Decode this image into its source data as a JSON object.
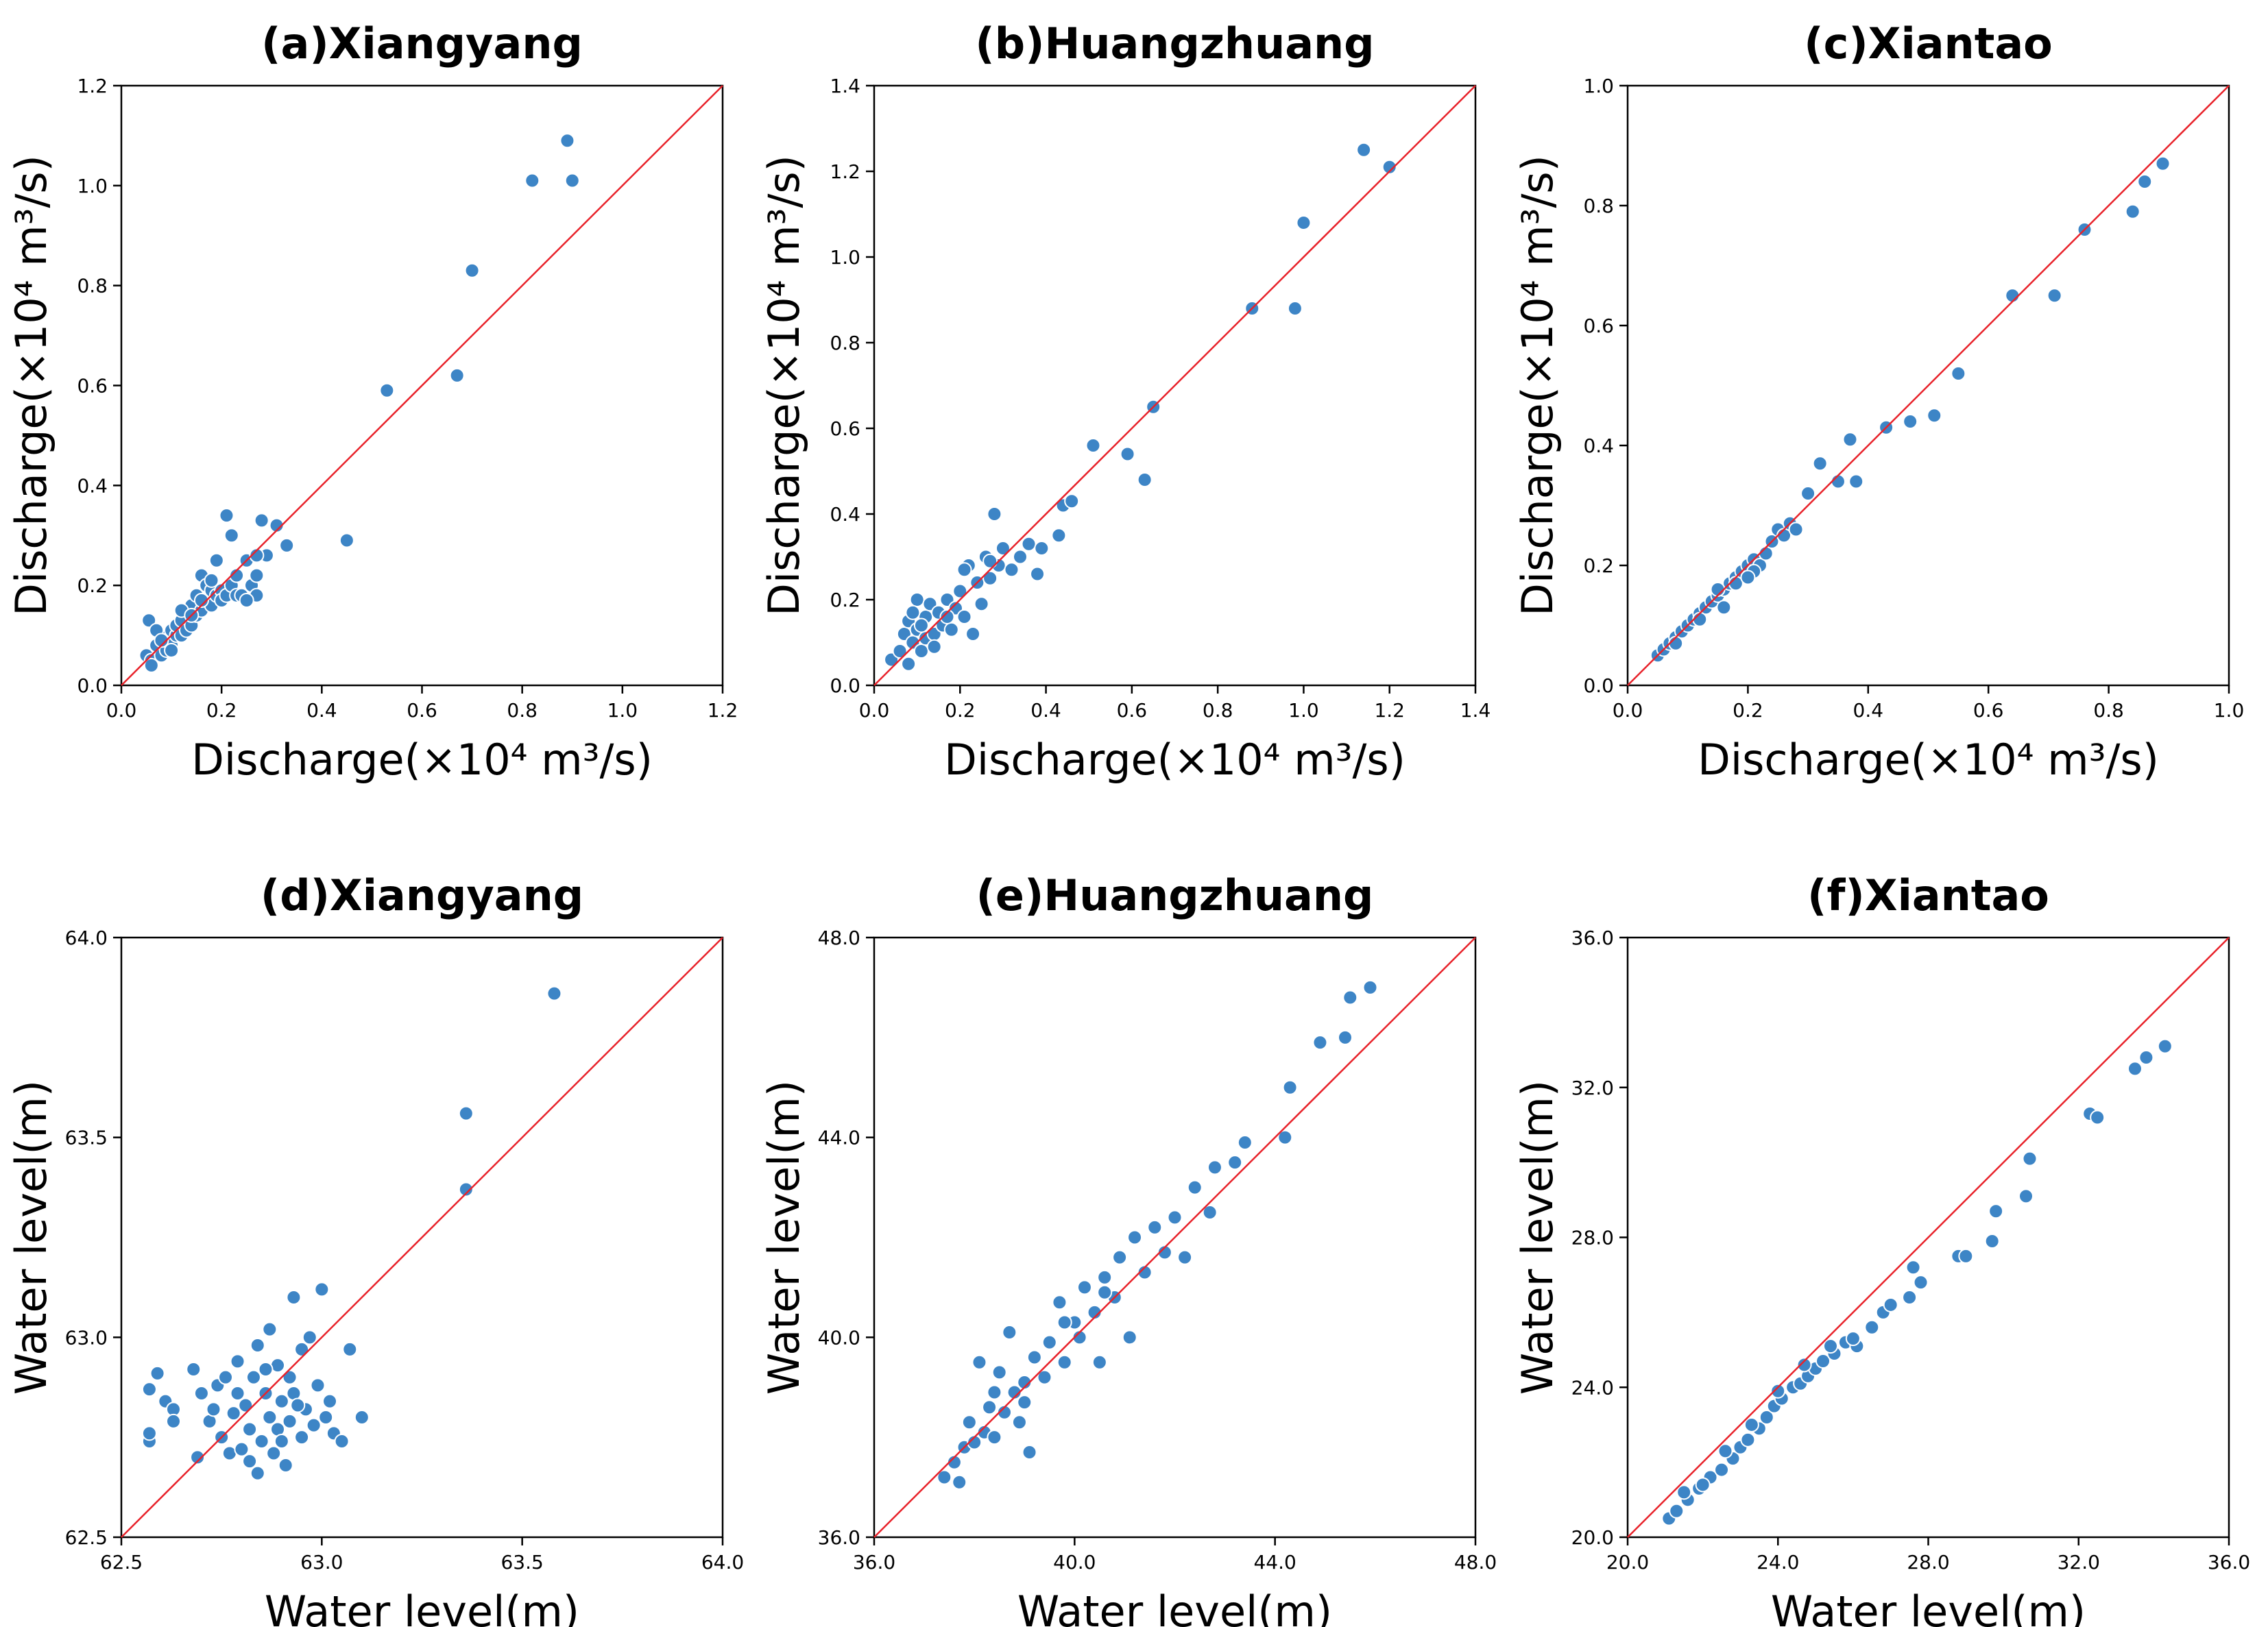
{
  "colors": {
    "point": "#3d85c6",
    "point_edge": "#ffffff",
    "diagonal": "#e8222a",
    "axes": "#000000"
  },
  "chart_data": [
    {
      "id": "a",
      "type": "scatter",
      "title": "(a)Xiangyang",
      "xlabel": "Discharge(×10⁴ m³/s)",
      "ylabel": "Discharge(×10⁴ m³/s)",
      "xlim": [
        0,
        1.2
      ],
      "ylim": [
        0,
        1.2
      ],
      "ticks": [
        0.0,
        0.2,
        0.4,
        0.6,
        0.8,
        1.0,
        1.2
      ],
      "tick_labels": [
        "0.0",
        "0.2",
        "0.4",
        "0.6",
        "0.8",
        "1.0",
        "1.2"
      ],
      "diagonal": true,
      "points": [
        [
          0.05,
          0.06
        ],
        [
          0.06,
          0.05
        ],
        [
          0.055,
          0.13
        ],
        [
          0.06,
          0.04
        ],
        [
          0.07,
          0.08
        ],
        [
          0.08,
          0.06
        ],
        [
          0.08,
          0.1
        ],
        [
          0.09,
          0.07
        ],
        [
          0.09,
          0.09
        ],
        [
          0.1,
          0.08
        ],
        [
          0.1,
          0.11
        ],
        [
          0.11,
          0.1
        ],
        [
          0.11,
          0.12
        ],
        [
          0.12,
          0.1
        ],
        [
          0.12,
          0.13
        ],
        [
          0.13,
          0.11
        ],
        [
          0.13,
          0.15
        ],
        [
          0.14,
          0.12
        ],
        [
          0.14,
          0.16
        ],
        [
          0.15,
          0.14
        ],
        [
          0.15,
          0.18
        ],
        [
          0.16,
          0.15
        ],
        [
          0.16,
          0.22
        ],
        [
          0.17,
          0.17
        ],
        [
          0.17,
          0.2
        ],
        [
          0.18,
          0.16
        ],
        [
          0.18,
          0.19
        ],
        [
          0.19,
          0.18
        ],
        [
          0.19,
          0.25
        ],
        [
          0.2,
          0.19
        ],
        [
          0.2,
          0.17
        ],
        [
          0.21,
          0.18
        ],
        [
          0.21,
          0.34
        ],
        [
          0.22,
          0.3
        ],
        [
          0.22,
          0.2
        ],
        [
          0.23,
          0.18
        ],
        [
          0.23,
          0.22
        ],
        [
          0.24,
          0.18
        ],
        [
          0.25,
          0.25
        ],
        [
          0.26,
          0.2
        ],
        [
          0.27,
          0.18
        ],
        [
          0.27,
          0.22
        ],
        [
          0.28,
          0.33
        ],
        [
          0.29,
          0.26
        ],
        [
          0.31,
          0.32
        ],
        [
          0.33,
          0.28
        ],
        [
          0.45,
          0.29
        ],
        [
          0.53,
          0.59
        ],
        [
          0.67,
          0.62
        ],
        [
          0.7,
          0.83
        ],
        [
          0.82,
          1.01
        ],
        [
          0.89,
          1.09
        ],
        [
          0.9,
          1.01
        ],
        [
          0.07,
          0.11
        ],
        [
          0.08,
          0.09
        ],
        [
          0.1,
          0.07
        ],
        [
          0.12,
          0.15
        ],
        [
          0.14,
          0.14
        ],
        [
          0.16,
          0.17
        ],
        [
          0.18,
          0.21
        ],
        [
          0.25,
          0.17
        ],
        [
          0.27,
          0.26
        ]
      ]
    },
    {
      "id": "b",
      "type": "scatter",
      "title": "(b)Huangzhuang",
      "xlabel": "Discharge(×10⁴ m³/s)",
      "ylabel": "Discharge(×10⁴ m³/s)",
      "xlim": [
        0,
        1.4
      ],
      "ylim": [
        0,
        1.4
      ],
      "ticks": [
        0.0,
        0.2,
        0.4,
        0.6,
        0.8,
        1.0,
        1.2,
        1.4
      ],
      "tick_labels": [
        "0.0",
        "0.2",
        "0.4",
        "0.6",
        "0.8",
        "1.0",
        "1.2",
        "1.4"
      ],
      "diagonal": true,
      "points": [
        [
          0.04,
          0.06
        ],
        [
          0.06,
          0.08
        ],
        [
          0.07,
          0.12
        ],
        [
          0.08,
          0.05
        ],
        [
          0.08,
          0.15
        ],
        [
          0.09,
          0.1
        ],
        [
          0.1,
          0.13
        ],
        [
          0.1,
          0.2
        ],
        [
          0.11,
          0.08
        ],
        [
          0.12,
          0.16
        ],
        [
          0.12,
          0.11
        ],
        [
          0.13,
          0.19
        ],
        [
          0.14,
          0.12
        ],
        [
          0.15,
          0.17
        ],
        [
          0.16,
          0.14
        ],
        [
          0.17,
          0.2
        ],
        [
          0.18,
          0.13
        ],
        [
          0.19,
          0.18
        ],
        [
          0.2,
          0.22
        ],
        [
          0.21,
          0.16
        ],
        [
          0.22,
          0.28
        ],
        [
          0.23,
          0.12
        ],
        [
          0.24,
          0.24
        ],
        [
          0.25,
          0.19
        ],
        [
          0.26,
          0.3
        ],
        [
          0.27,
          0.25
        ],
        [
          0.28,
          0.4
        ],
        [
          0.29,
          0.28
        ],
        [
          0.3,
          0.32
        ],
        [
          0.32,
          0.27
        ],
        [
          0.34,
          0.3
        ],
        [
          0.36,
          0.33
        ],
        [
          0.38,
          0.26
        ],
        [
          0.39,
          0.32
        ],
        [
          0.43,
          0.35
        ],
        [
          0.44,
          0.42
        ],
        [
          0.46,
          0.43
        ],
        [
          0.51,
          0.56
        ],
        [
          0.59,
          0.54
        ],
        [
          0.63,
          0.48
        ],
        [
          0.65,
          0.65
        ],
        [
          0.88,
          0.88
        ],
        [
          0.98,
          0.88
        ],
        [
          1.0,
          1.08
        ],
        [
          1.14,
          1.25
        ],
        [
          1.2,
          1.21
        ],
        [
          0.09,
          0.17
        ],
        [
          0.11,
          0.14
        ],
        [
          0.14,
          0.09
        ],
        [
          0.17,
          0.16
        ],
        [
          0.21,
          0.27
        ],
        [
          0.27,
          0.29
        ]
      ]
    },
    {
      "id": "c",
      "type": "scatter",
      "title": "(c)Xiantao",
      "xlabel": "Discharge(×10⁴ m³/s)",
      "ylabel": "Discharge(×10⁴ m³/s)",
      "xlim": [
        0,
        1.0
      ],
      "ylim": [
        0,
        1.0
      ],
      "ticks": [
        0.0,
        0.2,
        0.4,
        0.6,
        0.8,
        1.0
      ],
      "tick_labels": [
        "0.0",
        "0.2",
        "0.4",
        "0.6",
        "0.8",
        "1.0"
      ],
      "diagonal": true,
      "points": [
        [
          0.05,
          0.05
        ],
        [
          0.06,
          0.06
        ],
        [
          0.07,
          0.07
        ],
        [
          0.08,
          0.08
        ],
        [
          0.09,
          0.09
        ],
        [
          0.1,
          0.1
        ],
        [
          0.11,
          0.11
        ],
        [
          0.12,
          0.12
        ],
        [
          0.13,
          0.13
        ],
        [
          0.14,
          0.14
        ],
        [
          0.15,
          0.15
        ],
        [
          0.16,
          0.16
        ],
        [
          0.17,
          0.17
        ],
        [
          0.18,
          0.18
        ],
        [
          0.19,
          0.19
        ],
        [
          0.2,
          0.2
        ],
        [
          0.21,
          0.21
        ],
        [
          0.22,
          0.2
        ],
        [
          0.23,
          0.22
        ],
        [
          0.24,
          0.24
        ],
        [
          0.25,
          0.26
        ],
        [
          0.26,
          0.25
        ],
        [
          0.27,
          0.27
        ],
        [
          0.28,
          0.26
        ],
        [
          0.3,
          0.32
        ],
        [
          0.32,
          0.37
        ],
        [
          0.35,
          0.34
        ],
        [
          0.37,
          0.41
        ],
        [
          0.38,
          0.34
        ],
        [
          0.43,
          0.43
        ],
        [
          0.47,
          0.44
        ],
        [
          0.51,
          0.45
        ],
        [
          0.55,
          0.52
        ],
        [
          0.64,
          0.65
        ],
        [
          0.71,
          0.65
        ],
        [
          0.76,
          0.76
        ],
        [
          0.84,
          0.79
        ],
        [
          0.86,
          0.84
        ],
        [
          0.89,
          0.87
        ],
        [
          0.08,
          0.07
        ],
        [
          0.12,
          0.11
        ],
        [
          0.15,
          0.16
        ],
        [
          0.18,
          0.17
        ],
        [
          0.21,
          0.19
        ],
        [
          0.16,
          0.13
        ],
        [
          0.2,
          0.18
        ]
      ]
    },
    {
      "id": "d",
      "type": "scatter",
      "title": "(d)Xiangyang",
      "xlabel": "Water level(m)",
      "ylabel": "Water level(m)",
      "xlim": [
        62.5,
        64.0
      ],
      "ylim": [
        62.5,
        64.0
      ],
      "ticks": [
        62.5,
        63.0,
        63.5,
        64.0
      ],
      "tick_labels": [
        "62.5",
        "63.0",
        "63.5",
        "64.0"
      ],
      "diagonal": true,
      "points": [
        [
          62.57,
          62.87
        ],
        [
          62.57,
          62.74
        ],
        [
          62.57,
          62.76
        ],
        [
          62.59,
          62.91
        ],
        [
          62.61,
          62.84
        ],
        [
          62.63,
          62.82
        ],
        [
          62.63,
          62.79
        ],
        [
          62.68,
          62.92
        ],
        [
          62.69,
          62.7
        ],
        [
          62.7,
          62.86
        ],
        [
          62.72,
          62.79
        ],
        [
          62.73,
          62.82
        ],
        [
          62.74,
          62.88
        ],
        [
          62.75,
          62.75
        ],
        [
          62.76,
          62.9
        ],
        [
          62.77,
          62.71
        ],
        [
          62.78,
          62.81
        ],
        [
          62.79,
          62.86
        ],
        [
          62.79,
          62.94
        ],
        [
          62.8,
          62.72
        ],
        [
          62.81,
          62.83
        ],
        [
          62.82,
          62.77
        ],
        [
          62.83,
          62.9
        ],
        [
          62.84,
          62.66
        ],
        [
          62.84,
          62.98
        ],
        [
          62.85,
          62.74
        ],
        [
          62.86,
          62.86
        ],
        [
          62.87,
          62.8
        ],
        [
          62.87,
          63.02
        ],
        [
          62.88,
          62.71
        ],
        [
          62.89,
          62.93
        ],
        [
          62.89,
          62.77
        ],
        [
          62.9,
          62.84
        ],
        [
          62.91,
          62.68
        ],
        [
          62.92,
          62.9
        ],
        [
          62.92,
          62.79
        ],
        [
          62.93,
          62.86
        ],
        [
          62.93,
          63.1
        ],
        [
          62.95,
          62.75
        ],
        [
          62.95,
          62.97
        ],
        [
          62.96,
          62.82
        ],
        [
          62.97,
          63.0
        ],
        [
          62.98,
          62.78
        ],
        [
          62.99,
          62.88
        ],
        [
          63.0,
          63.12
        ],
        [
          63.01,
          62.8
        ],
        [
          63.02,
          62.84
        ],
        [
          63.03,
          62.76
        ],
        [
          63.05,
          62.74
        ],
        [
          63.07,
          62.97
        ],
        [
          63.1,
          62.8
        ],
        [
          63.36,
          63.56
        ],
        [
          63.36,
          63.37
        ],
        [
          63.58,
          63.86
        ],
        [
          62.82,
          62.69
        ],
        [
          62.86,
          62.92
        ],
        [
          62.9,
          62.74
        ],
        [
          62.94,
          62.83
        ]
      ]
    },
    {
      "id": "e",
      "type": "scatter",
      "title": "(e)Huangzhuang",
      "xlabel": "Water level(m)",
      "ylabel": "Water level(m)",
      "xlim": [
        36.0,
        48.0
      ],
      "ylim": [
        36.0,
        48.0
      ],
      "ticks": [
        36.0,
        40.0,
        44.0,
        48.0
      ],
      "tick_labels": [
        "36.0",
        "40.0",
        "44.0",
        "48.0"
      ],
      "diagonal": true,
      "points": [
        [
          37.4,
          37.2
        ],
        [
          37.6,
          37.5
        ],
        [
          37.8,
          37.8
        ],
        [
          37.9,
          38.3
        ],
        [
          38.0,
          37.9
        ],
        [
          38.1,
          39.5
        ],
        [
          38.2,
          38.1
        ],
        [
          38.3,
          38.6
        ],
        [
          38.4,
          38.0
        ],
        [
          38.5,
          39.3
        ],
        [
          38.6,
          38.5
        ],
        [
          38.7,
          40.1
        ],
        [
          38.8,
          38.9
        ],
        [
          38.9,
          38.3
        ],
        [
          39.0,
          39.1
        ],
        [
          39.1,
          37.7
        ],
        [
          39.2,
          39.6
        ],
        [
          39.4,
          39.2
        ],
        [
          39.5,
          39.9
        ],
        [
          39.7,
          40.7
        ],
        [
          39.8,
          39.5
        ],
        [
          40.0,
          40.3
        ],
        [
          40.1,
          40.0
        ],
        [
          40.2,
          41.0
        ],
        [
          40.4,
          40.5
        ],
        [
          40.5,
          39.5
        ],
        [
          40.6,
          41.2
        ],
        [
          40.8,
          40.8
        ],
        [
          40.9,
          41.6
        ],
        [
          41.1,
          40.0
        ],
        [
          41.2,
          42.0
        ],
        [
          41.4,
          41.3
        ],
        [
          41.6,
          42.2
        ],
        [
          41.8,
          41.7
        ],
        [
          42.0,
          42.4
        ],
        [
          42.2,
          41.6
        ],
        [
          42.4,
          43.0
        ],
        [
          42.7,
          42.5
        ],
        [
          42.8,
          43.4
        ],
        [
          43.2,
          43.5
        ],
        [
          43.4,
          43.9
        ],
        [
          44.2,
          44.0
        ],
        [
          44.3,
          45.0
        ],
        [
          44.9,
          45.9
        ],
        [
          45.4,
          46.0
        ],
        [
          45.5,
          46.8
        ],
        [
          45.9,
          47.0
        ],
        [
          37.7,
          37.1
        ],
        [
          38.4,
          38.9
        ],
        [
          39.0,
          38.7
        ],
        [
          39.8,
          40.3
        ],
        [
          40.6,
          40.9
        ]
      ]
    },
    {
      "id": "f",
      "type": "scatter",
      "title": "(f)Xiantao",
      "xlabel": "Water level(m)",
      "ylabel": "Water level(m)",
      "xlim": [
        20.0,
        36.0
      ],
      "ylim": [
        20.0,
        36.0
      ],
      "ticks": [
        20.0,
        24.0,
        28.0,
        32.0,
        36.0
      ],
      "tick_labels": [
        "20.0",
        "24.0",
        "28.0",
        "32.0",
        "36.0"
      ],
      "diagonal": true,
      "points": [
        [
          21.1,
          20.5
        ],
        [
          21.3,
          20.7
        ],
        [
          21.6,
          21.0
        ],
        [
          21.9,
          21.3
        ],
        [
          22.2,
          21.6
        ],
        [
          22.5,
          21.8
        ],
        [
          22.8,
          22.1
        ],
        [
          23.0,
          22.4
        ],
        [
          23.2,
          22.6
        ],
        [
          23.5,
          22.9
        ],
        [
          23.7,
          23.2
        ],
        [
          23.9,
          23.5
        ],
        [
          24.1,
          23.7
        ],
        [
          24.4,
          24.0
        ],
        [
          24.6,
          24.1
        ],
        [
          24.8,
          24.3
        ],
        [
          25.0,
          24.5
        ],
        [
          25.2,
          24.7
        ],
        [
          25.5,
          24.9
        ],
        [
          25.8,
          25.2
        ],
        [
          26.1,
          25.1
        ],
        [
          26.5,
          25.6
        ],
        [
          26.8,
          26.0
        ],
        [
          27.0,
          26.2
        ],
        [
          27.5,
          26.4
        ],
        [
          27.6,
          27.2
        ],
        [
          27.8,
          26.8
        ],
        [
          28.8,
          27.5
        ],
        [
          29.0,
          27.5
        ],
        [
          29.7,
          27.9
        ],
        [
          29.8,
          28.7
        ],
        [
          30.6,
          29.1
        ],
        [
          30.7,
          30.1
        ],
        [
          32.3,
          31.3
        ],
        [
          32.5,
          31.2
        ],
        [
          33.5,
          32.5
        ],
        [
          33.8,
          32.8
        ],
        [
          34.3,
          33.1
        ],
        [
          21.5,
          21.2
        ],
        [
          22.0,
          21.4
        ],
        [
          22.6,
          22.3
        ],
        [
          23.3,
          23.0
        ],
        [
          24.0,
          23.9
        ],
        [
          24.7,
          24.6
        ],
        [
          25.4,
          25.1
        ],
        [
          26.0,
          25.3
        ]
      ]
    }
  ]
}
